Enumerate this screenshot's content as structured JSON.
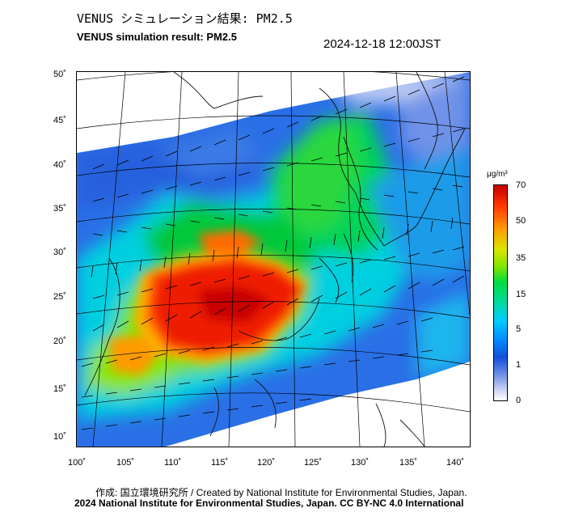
{
  "header": {
    "title_jp": "VENUS シミュレーション結果: PM2.5",
    "title_en": "VENUS simulation result: PM2.5",
    "datetime": "2024-12-18 12:00JST"
  },
  "map": {
    "lat_labels": [
      "50˚",
      "45˚",
      "40˚",
      "35˚",
      "30˚",
      "25˚",
      "20˚",
      "15˚",
      "10˚"
    ],
    "lon_labels": [
      "100˚",
      "105˚",
      "110˚",
      "115˚",
      "120˚",
      "125˚",
      "130˚",
      "135˚",
      "140˚"
    ]
  },
  "colorbar": {
    "unit": "μg/m³",
    "ticks": [
      "70",
      "50",
      "35",
      "15",
      "5",
      "1",
      "0"
    ],
    "colors": [
      "#c50000",
      "#ff3a00",
      "#ff9a00",
      "#d9e600",
      "#00dd40",
      "#00ccff",
      "#1450d9",
      "#d8dcf5",
      "#ffffff"
    ]
  },
  "footer": {
    "credit_jp": "作成: 国立環境研究所 / Created by National Institute for Environmental Studies, Japan.",
    "credit_en": "2024 National Institute for Environmental Studies, Japan. CC BY-NC 4.0 International"
  }
}
